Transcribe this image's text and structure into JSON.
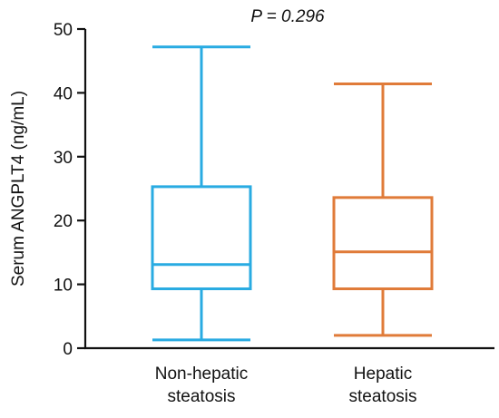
{
  "chart_data": {
    "type": "box",
    "annotation": "P = 0.296",
    "ylabel": "Serum ANGPLT4 (ng/mL)",
    "xlabel": "",
    "ylim": [
      0,
      50
    ],
    "yticks": [
      0,
      10,
      20,
      30,
      40,
      50
    ],
    "grid": false,
    "categories": [
      [
        "Non-hepatic",
        "steatosis"
      ],
      [
        "Hepatic",
        "steatosis"
      ]
    ],
    "boxes": [
      {
        "whisker_low": 1.3,
        "q1": 9.3,
        "median": 13.1,
        "q3": 25.3,
        "whisker_high": 47.2,
        "color": "#29ABE2"
      },
      {
        "whisker_low": 2.0,
        "q1": 9.3,
        "median": 15.1,
        "q3": 23.6,
        "whisker_high": 41.4,
        "color": "#E07B39"
      }
    ]
  }
}
